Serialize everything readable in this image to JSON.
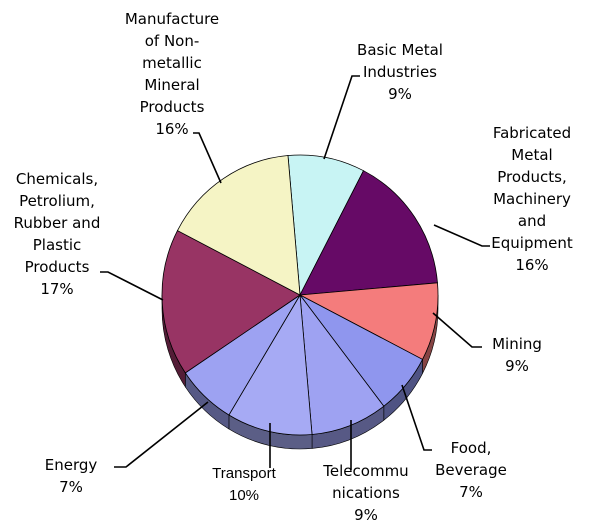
{
  "chart_data": {
    "type": "pie",
    "title": "",
    "series": [
      {
        "values": [
          9,
          16,
          9,
          7,
          9,
          10,
          7,
          17,
          16
        ],
        "categories": [
          "Basic Metal Industries",
          "Fabricated Metal Products, Machinery and Equipment",
          "Mining",
          "Food, Beverage",
          "Telecommunications",
          "Transport",
          "Energy",
          "Chemicals, Petrolium, Rubber and Plastic Products",
          "Manufacture of Non-metallic Mineral Products"
        ]
      }
    ],
    "colors": [
      "#c8f4f4",
      "#660a66",
      "#f47c7c",
      "#8f96ee",
      "#9ea2f2",
      "#a6aaf4",
      "#9da2f2",
      "#983464",
      "#f5f4c5"
    ],
    "labels": [
      {
        "lines": [
          "Basic Metal",
          "Industries",
          "9%"
        ]
      },
      {
        "lines": [
          "Fabricated",
          "Metal",
          "Products,",
          "Machinery",
          "and",
          "Equipment",
          "16%"
        ]
      },
      {
        "lines": [
          "Mining",
          "9%"
        ]
      },
      {
        "lines": [
          "Food,",
          "Beverage",
          "7%"
        ]
      },
      {
        "lines": [
          "Telecommu",
          "nications",
          "9%"
        ]
      },
      {
        "lines": [
          "Transport",
          "10%"
        ]
      },
      {
        "lines": [
          "Energy",
          "7%"
        ]
      },
      {
        "lines": [
          "Chemicals,",
          "Petrolium,",
          "Rubber and",
          "Plastic",
          "Products",
          "17%"
        ]
      },
      {
        "lines": [
          "Manufacture",
          "of Non-",
          "metallic",
          "Mineral",
          "Products",
          "16%"
        ]
      }
    ],
    "legend": "none"
  }
}
